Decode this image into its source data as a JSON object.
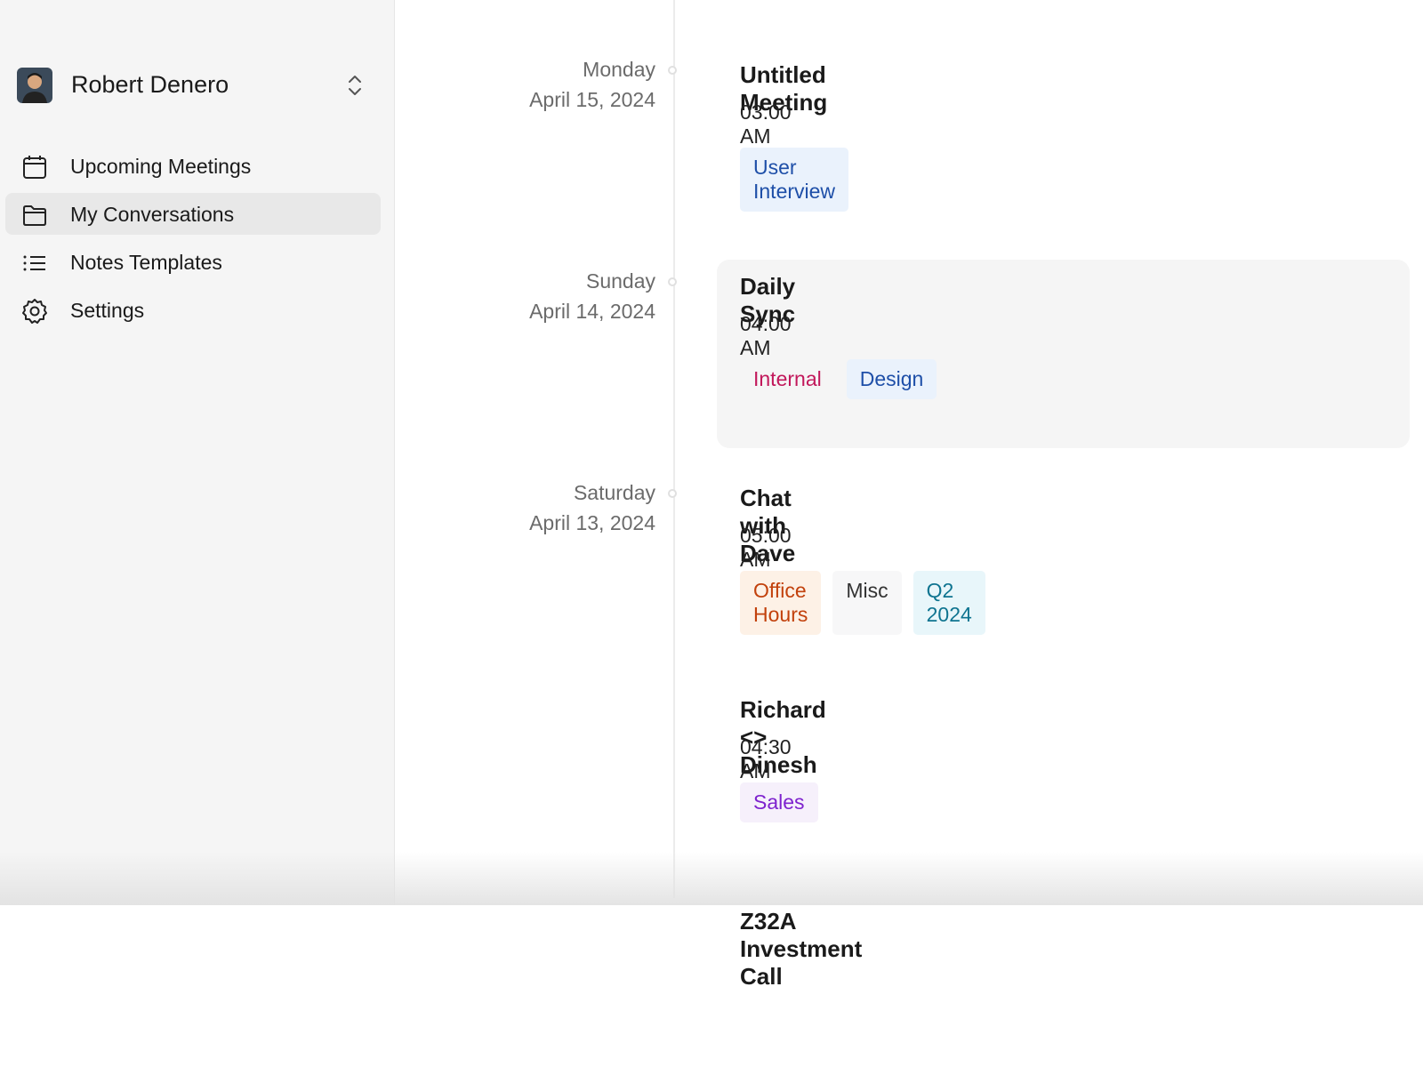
{
  "user": {
    "name": "Robert Denero"
  },
  "nav": [
    "Upcoming Meetings",
    "My Conversations",
    "Notes Templates",
    "Settings"
  ],
  "meetings": [
    {
      "day": "Monday",
      "date": "April 15, 2024",
      "title": "Untitled Meeting",
      "time": "03:00 AM",
      "tags": [
        {
          "label": "User Interview",
          "color": "#1e4fa8",
          "background": "#eaf2fc"
        }
      ]
    },
    {
      "day": "Sunday",
      "date": "April 14, 2024",
      "title": "Daily Sync",
      "time": "04:00 AM",
      "tags": [
        {
          "label": "Internal",
          "color": "#c2185b",
          "background": "#f5f5f5"
        },
        {
          "label": "Design",
          "color": "#1e4fa8",
          "background": "#eaf2fc"
        }
      ]
    },
    {
      "day": "Saturday",
      "date": "April 13, 2024",
      "title": "Chat with Dave",
      "time": "05:00 AM",
      "tags": [
        {
          "label": "Office Hours",
          "color": "#c2410c",
          "background": "#fdf1e6"
        },
        {
          "label": "Misc",
          "color": "#333333",
          "background": "#f7f7f8"
        },
        {
          "label": "Q2 2024",
          "color": "#0e7490",
          "background": "#e8f6fa"
        }
      ]
    },
    {
      "title": "Richard <> Dinesh",
      "time": "04:30 AM",
      "tags": [
        {
          "label": "Sales",
          "color": "#7e22ce",
          "background": "#f6f0fb"
        }
      ]
    },
    {
      "title": "Z32A Investment Call"
    }
  ]
}
